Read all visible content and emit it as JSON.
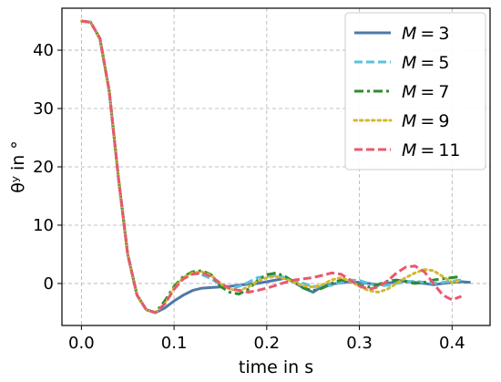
{
  "chart_data": {
    "type": "line",
    "xlabel": "time in s",
    "ylabel": "θʸ in °",
    "xlim": [
      -0.021,
      0.441
    ],
    "ylim": [
      -7.2,
      47.2
    ],
    "xticks": [
      0.0,
      0.1,
      0.2,
      0.3,
      0.4
    ],
    "xtick_labels": [
      "0.0",
      "0.1",
      "0.2",
      "0.3",
      "0.4"
    ],
    "yticks": [
      0,
      10,
      20,
      30,
      40
    ],
    "ytick_labels": [
      "0",
      "10",
      "20",
      "30",
      "40"
    ],
    "grid": true,
    "legend_position": "top-right",
    "series": [
      {
        "name": "M = 3",
        "label_var": "M",
        "label_op": "=",
        "label_num": "3",
        "color": "#4e79a7",
        "dash": "solid",
        "x": [
          0,
          0.01,
          0.02,
          0.03,
          0.04,
          0.05,
          0.06,
          0.07,
          0.08,
          0.09,
          0.1,
          0.11,
          0.12,
          0.13,
          0.14,
          0.15,
          0.16,
          0.17,
          0.18,
          0.19,
          0.2,
          0.21,
          0.22,
          0.23,
          0.24,
          0.25,
          0.26,
          0.27,
          0.28,
          0.29,
          0.3,
          0.31,
          0.32,
          0.33,
          0.34,
          0.35,
          0.36,
          0.37,
          0.38,
          0.39,
          0.4,
          0.41,
          0.42
        ],
        "y": [
          45,
          44.8,
          42,
          33,
          18,
          5,
          -2,
          -4.5,
          -5,
          -4.2,
          -3,
          -2,
          -1.2,
          -0.8,
          -0.7,
          -0.6,
          -0.5,
          -0.3,
          -0.1,
          0,
          0.3,
          0.6,
          0.9,
          0.2,
          -0.8,
          -1.5,
          -0.5,
          -0.1,
          0.1,
          0.3,
          0.2,
          0,
          -0.2,
          0,
          0.3,
          0.4,
          0.2,
          0,
          -0.2,
          0,
          0.2,
          0.3,
          0.2
        ]
      },
      {
        "name": "M = 5",
        "label_var": "M",
        "label_op": "=",
        "label_num": "5",
        "color": "#5bc0de",
        "dash": "dashed",
        "x": [
          0,
          0.01,
          0.02,
          0.03,
          0.04,
          0.05,
          0.06,
          0.07,
          0.08,
          0.09,
          0.1,
          0.11,
          0.12,
          0.13,
          0.14,
          0.15,
          0.16,
          0.17,
          0.18,
          0.19,
          0.2,
          0.21,
          0.22,
          0.23,
          0.24,
          0.25,
          0.26,
          0.27,
          0.28,
          0.29,
          0.3,
          0.31,
          0.32,
          0.33,
          0.34,
          0.35,
          0.36,
          0.37,
          0.38,
          0.39,
          0.4,
          0.41
        ],
        "y": [
          45,
          44.8,
          42,
          33,
          18,
          5,
          -2,
          -4.5,
          -5,
          -3.5,
          -1,
          1,
          1.8,
          1.5,
          0.8,
          -0.2,
          -0.8,
          -0.5,
          0.2,
          1,
          1.2,
          1.4,
          1,
          0.4,
          0,
          -0.5,
          -0.6,
          -0.3,
          0.2,
          0.6,
          0.5,
          0,
          -0.4,
          -0.3,
          0,
          0.3,
          0.4,
          0.2,
          0,
          0.2,
          0.4,
          0.6
        ]
      },
      {
        "name": "M = 7",
        "label_var": "M",
        "label_op": "=",
        "label_num": "7",
        "color": "#2e8b2e",
        "dash": "dashdot",
        "x": [
          0,
          0.01,
          0.02,
          0.03,
          0.04,
          0.05,
          0.06,
          0.07,
          0.08,
          0.09,
          0.1,
          0.11,
          0.12,
          0.13,
          0.14,
          0.15,
          0.16,
          0.17,
          0.18,
          0.19,
          0.2,
          0.21,
          0.22,
          0.23,
          0.24,
          0.25,
          0.26,
          0.27,
          0.28,
          0.29,
          0.3,
          0.31,
          0.32,
          0.33,
          0.34,
          0.35,
          0.36,
          0.37,
          0.38,
          0.39,
          0.4,
          0.41
        ],
        "y": [
          45,
          44.8,
          42,
          33,
          18,
          5,
          -2,
          -4.5,
          -5,
          -3,
          -0.5,
          1.2,
          2,
          2.2,
          1.5,
          -0.5,
          -1.5,
          -1.8,
          -1,
          0.5,
          1.5,
          1.8,
          1.2,
          0.2,
          -0.8,
          -1.2,
          -0.8,
          0,
          0.6,
          0.4,
          -0.3,
          -0.6,
          -0.2,
          0.4,
          0.6,
          0.3,
          0,
          0.2,
          0.6,
          0.8,
          1,
          1.2
        ]
      },
      {
        "name": "M = 9",
        "label_var": "M",
        "label_op": "=",
        "label_num": "9",
        "color": "#d4b82e",
        "dash": "dotted",
        "x": [
          0,
          0.01,
          0.02,
          0.03,
          0.04,
          0.05,
          0.06,
          0.07,
          0.08,
          0.09,
          0.1,
          0.11,
          0.12,
          0.13,
          0.14,
          0.15,
          0.16,
          0.17,
          0.18,
          0.19,
          0.2,
          0.21,
          0.22,
          0.23,
          0.24,
          0.25,
          0.26,
          0.27,
          0.28,
          0.29,
          0.3,
          0.31,
          0.32,
          0.33,
          0.34,
          0.35,
          0.36,
          0.37,
          0.38,
          0.39,
          0.4,
          0.41
        ],
        "y": [
          45,
          44.8,
          42,
          33,
          18,
          5,
          -2,
          -4.5,
          -5,
          -3.5,
          -0.8,
          1,
          1.8,
          2,
          1.4,
          0,
          -1,
          -1.2,
          -0.6,
          0.4,
          1,
          1.2,
          0.8,
          0.2,
          -0.4,
          -0.6,
          -0.2,
          0.6,
          1,
          0.4,
          -0.5,
          -1.2,
          -1.5,
          -1,
          0,
          1,
          1.8,
          2.4,
          2.2,
          1.2,
          0.2,
          0.5
        ]
      },
      {
        "name": "M = 11",
        "label_var": "M",
        "label_op": "=",
        "label_num": "11",
        "color": "#e8596e",
        "dash": "dashed",
        "x": [
          0,
          0.01,
          0.02,
          0.03,
          0.04,
          0.05,
          0.06,
          0.07,
          0.08,
          0.09,
          0.1,
          0.11,
          0.12,
          0.13,
          0.14,
          0.15,
          0.16,
          0.17,
          0.18,
          0.19,
          0.2,
          0.21,
          0.22,
          0.23,
          0.24,
          0.25,
          0.26,
          0.27,
          0.28,
          0.29,
          0.3,
          0.31,
          0.32,
          0.33,
          0.34,
          0.35,
          0.36,
          0.37,
          0.38,
          0.39,
          0.4,
          0.41
        ],
        "y": [
          45,
          44.8,
          42,
          33,
          18,
          5,
          -2,
          -4.5,
          -5,
          -3.5,
          -1,
          0.8,
          1.6,
          1.8,
          1.2,
          0,
          -0.8,
          -1.2,
          -1.5,
          -1.2,
          -0.8,
          -0.3,
          0.2,
          0.6,
          0.8,
          1,
          1.4,
          1.8,
          1.6,
          0.6,
          -0.4,
          -1,
          -0.6,
          0.4,
          1.8,
          2.8,
          3,
          2,
          0,
          -2,
          -2.8,
          -2.2
        ]
      }
    ]
  }
}
